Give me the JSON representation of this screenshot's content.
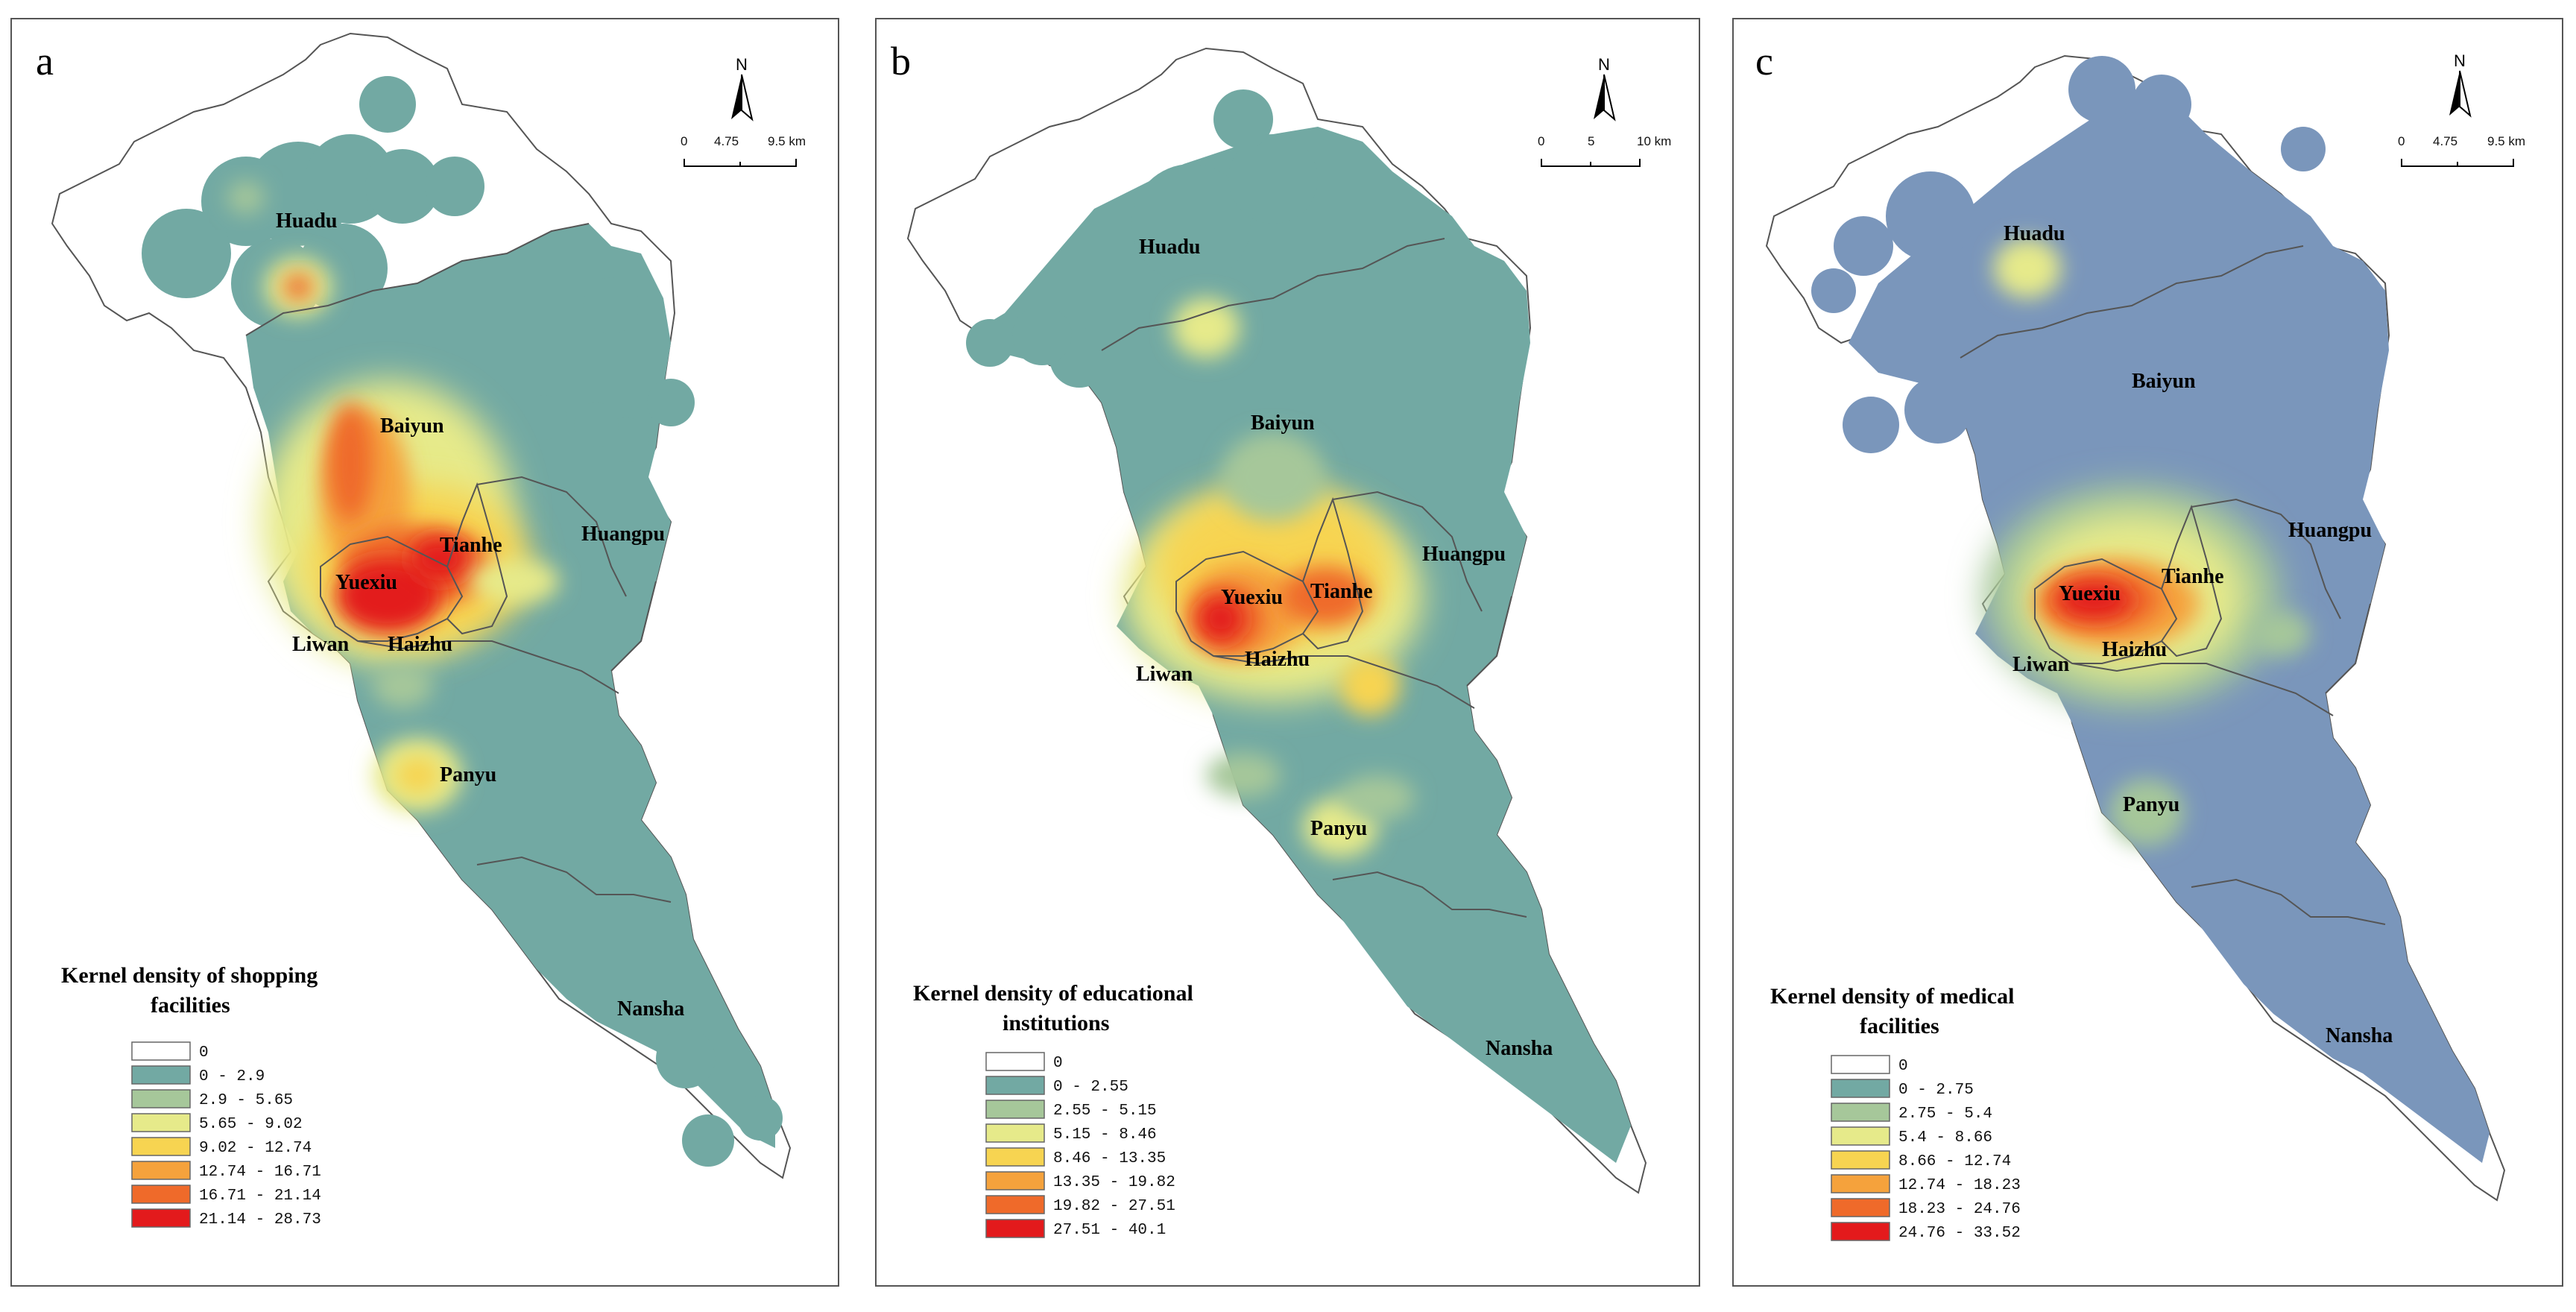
{
  "panels": [
    {
      "label": "a",
      "legend": {
        "title_line1": "Kernel density of shopping",
        "title_line2": "facilities",
        "items": [
          "0",
          "0 - 2.9",
          "2.9 - 5.65",
          "5.65 - 9.02",
          "9.02 - 12.74",
          "12.74 - 16.71",
          "16.71 - 21.14",
          "21.14 - 28.73"
        ],
        "colors": [
          "#ffffff",
          "#72a9a3",
          "#a6c79a",
          "#e6ea8a",
          "#f7d451",
          "#f5a23c",
          "#ef6a2a",
          "#e31a1c"
        ]
      },
      "base_color": "#72a9a3",
      "scale": {
        "ticks": [
          "0",
          "4.75",
          "9.5 km"
        ]
      },
      "north": "N",
      "districts": {
        "huadu": "Huadu",
        "baiyun": "Baiyun",
        "tianhe": "Tianhe",
        "huangpu": "Huangpu",
        "yuexiu": "Yuexiu",
        "liwan": "Liwan",
        "haizhu": "Haizhu",
        "panyu": "Panyu",
        "nansha": "Nansha"
      }
    },
    {
      "label": "b",
      "legend": {
        "title_line1": "Kernel density of educational",
        "title_line2": "institutions",
        "items": [
          "0",
          "0 - 2.55",
          "2.55 - 5.15",
          "5.15 - 8.46",
          "8.46 - 13.35",
          "13.35 - 19.82",
          "19.82 - 27.51",
          "27.51 - 40.1"
        ],
        "colors": [
          "#ffffff",
          "#72a9a3",
          "#a6c79a",
          "#e6ea8a",
          "#f7d451",
          "#f5a23c",
          "#ef6a2a",
          "#e31a1c"
        ]
      },
      "base_color": "#72a9a3",
      "scale": {
        "ticks": [
          "0",
          "5",
          "10 km"
        ]
      },
      "north": "N",
      "districts": {
        "huadu": "Huadu",
        "baiyun": "Baiyun",
        "tianhe": "Tianhe",
        "huangpu": "Huangpu",
        "yuexiu": "Yuexiu",
        "liwan": "Liwan",
        "haizhu": "Haizhu",
        "panyu": "Panyu",
        "nansha": "Nansha"
      }
    },
    {
      "label": "c",
      "legend": {
        "title_line1": "Kernel density of medical",
        "title_line2": "facilities",
        "items": [
          "0",
          "0 - 2.75",
          "2.75 - 5.4",
          "5.4 - 8.66",
          "8.66 - 12.74",
          "12.74 - 18.23",
          "18.23 - 24.76",
          "24.76 - 33.52"
        ],
        "colors": [
          "#ffffff",
          "#72a9a3",
          "#a6c79a",
          "#e6ea8a",
          "#f7d451",
          "#f5a23c",
          "#ef6a2a",
          "#e31a1c"
        ]
      },
      "base_color": "#7a96bb",
      "scale": {
        "ticks": [
          "0",
          "4.75",
          "9.5 km"
        ]
      },
      "north": "N",
      "districts": {
        "huadu": "Huadu",
        "baiyun": "Baiyun",
        "tianhe": "Tianhe",
        "huangpu": "Huangpu",
        "yuexiu": "Yuexiu",
        "liwan": "Liwan",
        "haizhu": "Haizhu",
        "panyu": "Panyu",
        "nansha": "Nansha"
      }
    }
  ]
}
